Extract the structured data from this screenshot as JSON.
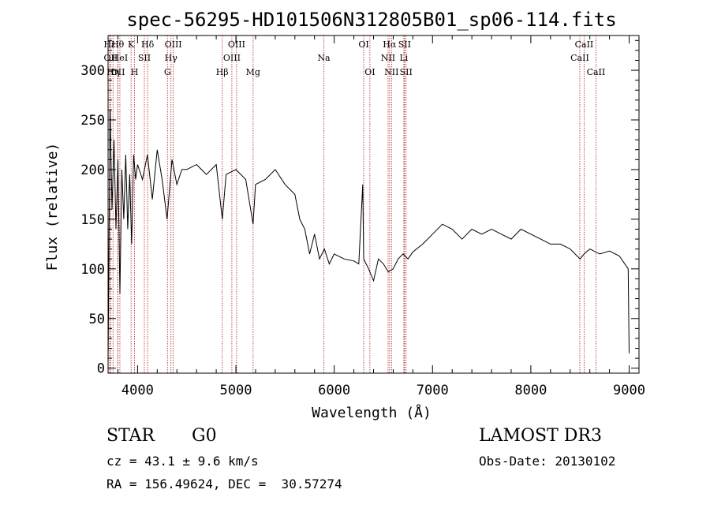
{
  "chart_data": {
    "type": "line",
    "title": "spec-56295-HD101506N312805B01_sp06-114.fits",
    "xlabel": "Wavelength (Å)",
    "ylabel": "Flux (relative)",
    "xlim": [
      3700,
      9100
    ],
    "ylim": [
      -5,
      335
    ],
    "xticks": [
      4000,
      5000,
      6000,
      7000,
      8000,
      9000
    ],
    "yticks": [
      0,
      50,
      100,
      150,
      200,
      250,
      300
    ],
    "series": [
      {
        "x": [
          3700,
          3720,
          3740,
          3760,
          3780,
          3800,
          3820,
          3840,
          3860,
          3880,
          3900,
          3920,
          3940,
          3960,
          3980,
          4000,
          4050,
          4100,
          4150,
          4200,
          4250,
          4300,
          4350,
          4400,
          4450,
          4500,
          4600,
          4700,
          4800,
          4862,
          4900,
          5000,
          5100,
          5175,
          5200,
          5300,
          5400,
          5500,
          5600,
          5650,
          5700,
          5750,
          5800,
          5850,
          5900,
          5950,
          6000,
          6100,
          6200,
          6250,
          6290,
          6300,
          6350,
          6400,
          6450,
          6500,
          6550,
          6600,
          6650,
          6700,
          6750,
          6800,
          6900,
          7000,
          7100,
          7200,
          7300,
          7400,
          7500,
          7600,
          7700,
          7800,
          7900,
          8000,
          8100,
          8200,
          8300,
          8400,
          8500,
          8542,
          8600,
          8700,
          8800,
          8900,
          8990,
          9000
        ],
        "y": [
          5,
          260,
          160,
          230,
          140,
          210,
          75,
          200,
          150,
          215,
          140,
          195,
          125,
          215,
          190,
          205,
          190,
          215,
          170,
          220,
          190,
          150,
          210,
          185,
          200,
          200,
          205,
          195,
          205,
          150,
          195,
          200,
          190,
          145,
          185,
          190,
          200,
          185,
          175,
          150,
          140,
          115,
          135,
          110,
          120,
          105,
          115,
          110,
          108,
          105,
          185,
          110,
          100,
          88,
          110,
          105,
          97,
          100,
          110,
          115,
          110,
          117,
          125,
          135,
          145,
          140,
          130,
          140,
          135,
          140,
          135,
          130,
          140,
          135,
          130,
          125,
          125,
          120,
          110,
          115,
          120,
          115,
          118,
          113,
          100,
          15
        ]
      }
    ],
    "lines": [
      {
        "name": "Hε",
        "x": 3716,
        "row": 0
      },
      {
        "name": "OII",
        "x": 3727,
        "row": 1
      },
      {
        "name": "Hη",
        "x": 3750,
        "row": 2
      },
      {
        "name": "Hθ",
        "x": 3798,
        "row": 0
      },
      {
        "name": "OII",
        "x": 3801,
        "row": 2
      },
      {
        "name": "HeI",
        "x": 3820,
        "row": 1
      },
      {
        "name": "K",
        "x": 3934,
        "row": 0
      },
      {
        "name": "H",
        "x": 3969,
        "row": 2
      },
      {
        "name": "SII",
        "x": 4069,
        "row": 1
      },
      {
        "name": "Hδ",
        "x": 4102,
        "row": 0
      },
      {
        "name": "G",
        "x": 4304,
        "row": 2
      },
      {
        "name": "Hγ",
        "x": 4340,
        "row": 1
      },
      {
        "name": "OIII",
        "x": 4363,
        "row": 0
      },
      {
        "name": "Hβ",
        "x": 4861,
        "row": 2
      },
      {
        "name": "OIII",
        "x": 4959,
        "row": 1
      },
      {
        "name": "OIII",
        "x": 5007,
        "row": 0
      },
      {
        "name": "Mg",
        "x": 5175,
        "row": 2
      },
      {
        "name": "Na",
        "x": 5894,
        "row": 1
      },
      {
        "name": "OI",
        "x": 6300,
        "row": 0
      },
      {
        "name": "OI",
        "x": 6363,
        "row": 2
      },
      {
        "name": "NII",
        "x": 6548,
        "row": 1
      },
      {
        "name": "Hα",
        "x": 6563,
        "row": 0
      },
      {
        "name": "NII",
        "x": 6583,
        "row": 2
      },
      {
        "name": "Li",
        "x": 6708,
        "row": 1
      },
      {
        "name": "SII",
        "x": 6716,
        "row": 0
      },
      {
        "name": "SII",
        "x": 6731,
        "row": 2
      },
      {
        "name": "CaII",
        "x": 8498,
        "row": 1
      },
      {
        "name": "CaII",
        "x": 8542,
        "row": 0
      },
      {
        "name": "CaII",
        "x": 8662,
        "row": 2
      }
    ],
    "grid": false,
    "legend": "none"
  },
  "info": {
    "object_class": "STAR",
    "subclass": "G0",
    "survey": "LAMOST DR3",
    "redshift": "cz = 43.1 ± 9.6 km/s",
    "obs_date": "Obs-Date: 20130102",
    "coords": "RA = 156.49624, DEC =  30.57274"
  },
  "colors": {
    "spectrum": "#000000",
    "line_markers": "#b22222",
    "axes": "#000000"
  }
}
